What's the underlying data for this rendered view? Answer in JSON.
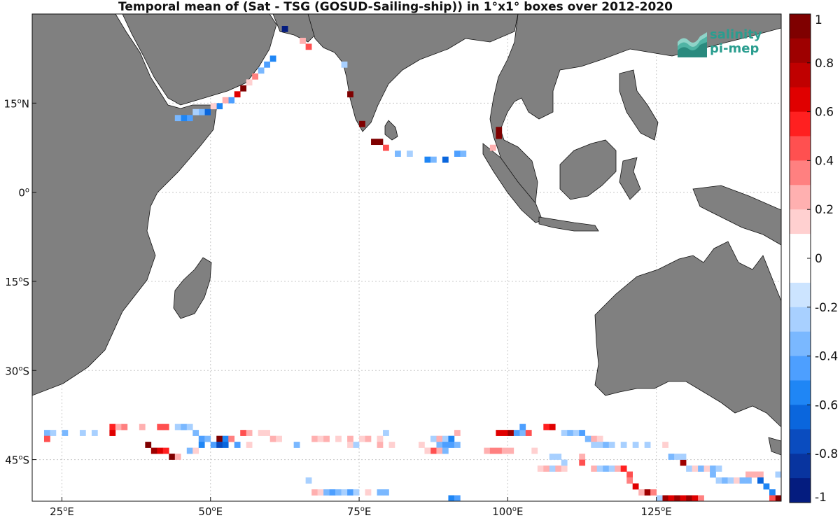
{
  "title": "Temporal mean of (Sat - TSG (GOSUD-Sailing-ship)) in 1°x1° boxes over 2012-2020",
  "logo": {
    "line1": "salinity",
    "line2": "pi-mep"
  },
  "colors": {
    "land": "#808080",
    "ocean": "#ffffff",
    "grid": "#c8c8c8"
  },
  "map": {
    "lon_range": [
      20,
      146
    ],
    "lat_range": [
      -52,
      30
    ],
    "lon_ticks": [
      {
        "value": 25,
        "label": "25",
        "unit": "E"
      },
      {
        "value": 50,
        "label": "50",
        "unit": "E"
      },
      {
        "value": 75,
        "label": "75",
        "unit": "E"
      },
      {
        "value": 100,
        "label": "100",
        "unit": "E"
      },
      {
        "value": 125,
        "label": "125",
        "unit": "E"
      }
    ],
    "lat_ticks": [
      {
        "value": 15,
        "label": "15",
        "unit": "N"
      },
      {
        "value": 0,
        "label": "0",
        "unit": ""
      },
      {
        "value": -15,
        "label": "15",
        "unit": "S"
      },
      {
        "value": -30,
        "label": "30",
        "unit": "S"
      },
      {
        "value": -45,
        "label": "45",
        "unit": "S"
      }
    ]
  },
  "colorbar": {
    "range": [
      -1,
      1
    ],
    "labels": [
      "1",
      "0.8",
      "0.6",
      "0.4",
      "0.2",
      "0",
      "-0.2",
      "-0.4",
      "-0.6",
      "-0.8",
      "-1"
    ],
    "colors": [
      "#7f0000",
      "#9e0000",
      "#c00000",
      "#e00000",
      "#ff2020",
      "#ff5050",
      "#ff8080",
      "#ffb0b0",
      "#ffd0d0",
      "#ffffff",
      "#ffffff",
      "#cce4ff",
      "#a8d0ff",
      "#7ab8ff",
      "#4d9fff",
      "#1f86f5",
      "#0a66dd",
      "#0a4cbf",
      "#08349f",
      "#041c7f"
    ]
  },
  "grid_cells": [
    {
      "lon": 62.5,
      "lat": 27.5,
      "v": -0.9
    },
    {
      "lon": 65.5,
      "lat": 25.5,
      "v": 0.3
    },
    {
      "lon": 66.5,
      "lat": 24.5,
      "v": 0.5
    },
    {
      "lon": 60.5,
      "lat": 22.5,
      "v": -0.5
    },
    {
      "lon": 59.5,
      "lat": 21.5,
      "v": -0.4
    },
    {
      "lon": 58.5,
      "lat": 20.5,
      "v": -0.3
    },
    {
      "lon": 57.5,
      "lat": 19.5,
      "v": 0.4
    },
    {
      "lon": 56.5,
      "lat": 18.5,
      "v": 0.2
    },
    {
      "lon": 55.5,
      "lat": 17.5,
      "v": 0.9
    },
    {
      "lon": 54.5,
      "lat": 16.5,
      "v": 0.7
    },
    {
      "lon": 53.5,
      "lat": 15.5,
      "v": -0.4
    },
    {
      "lon": 52.5,
      "lat": 15.5,
      "v": 0.3
    },
    {
      "lon": 51.5,
      "lat": 14.5,
      "v": -0.5
    },
    {
      "lon": 50.5,
      "lat": 14.5,
      "v": 0.2
    },
    {
      "lon": 49.5,
      "lat": 13.5,
      "v": -0.6
    },
    {
      "lon": 48.5,
      "lat": 13.5,
      "v": -0.3
    },
    {
      "lon": 47.5,
      "lat": 13.5,
      "v": -0.2
    },
    {
      "lon": 46.5,
      "lat": 12.5,
      "v": -0.4
    },
    {
      "lon": 45.5,
      "lat": 12.5,
      "v": -0.5
    },
    {
      "lon": 44.5,
      "lat": 12.5,
      "v": -0.3
    },
    {
      "lon": 72.5,
      "lat": 21.5,
      "v": -0.2
    },
    {
      "lon": 73.5,
      "lat": 16.5,
      "v": 0.9
    },
    {
      "lon": 75.5,
      "lat": 11.5,
      "v": 0.9
    },
    {
      "lon": 77.5,
      "lat": 8.5,
      "v": 1.0
    },
    {
      "lon": 78.5,
      "lat": 8.5,
      "v": 0.9
    },
    {
      "lon": 79.5,
      "lat": 7.5,
      "v": 0.5
    },
    {
      "lon": 81.5,
      "lat": 6.5,
      "v": -0.3
    },
    {
      "lon": 83.5,
      "lat": 6.5,
      "v": -0.2
    },
    {
      "lon": 86.5,
      "lat": 5.5,
      "v": -0.5
    },
    {
      "lon": 87.5,
      "lat": 5.5,
      "v": -0.3
    },
    {
      "lon": 89.5,
      "lat": 5.5,
      "v": -0.6
    },
    {
      "lon": 91.5,
      "lat": 6.5,
      "v": -0.4
    },
    {
      "lon": 92.5,
      "lat": 6.5,
      "v": -0.3
    },
    {
      "lon": 97.5,
      "lat": 7.5,
      "v": 0.3
    },
    {
      "lon": 98.5,
      "lat": 9.5,
      "v": 1.0
    },
    {
      "lon": 98.5,
      "lat": 10.5,
      "v": 0.9
    },
    {
      "lon": 22.5,
      "lat": -40.5,
      "v": -0.3
    },
    {
      "lon": 23.5,
      "lat": -40.5,
      "v": -0.2
    },
    {
      "lon": 25.5,
      "lat": -40.5,
      "v": -0.3
    },
    {
      "lon": 28.5,
      "lat": -40.5,
      "v": -0.2
    },
    {
      "lon": 30.5,
      "lat": -40.5,
      "v": -0.2
    },
    {
      "lon": 22.5,
      "lat": -41.5,
      "v": 0.5
    },
    {
      "lon": 33.5,
      "lat": -39.5,
      "v": 0.6
    },
    {
      "lon": 34.5,
      "lat": -39.5,
      "v": 0.3
    },
    {
      "lon": 35.5,
      "lat": -39.5,
      "v": 0.4
    },
    {
      "lon": 33.5,
      "lat": -40.5,
      "v": 0.7
    },
    {
      "lon": 38.5,
      "lat": -39.5,
      "v": 0.3
    },
    {
      "lon": 41.5,
      "lat": -39.5,
      "v": 0.5
    },
    {
      "lon": 42.5,
      "lat": -39.5,
      "v": 0.5
    },
    {
      "lon": 44.5,
      "lat": -39.5,
      "v": -0.2
    },
    {
      "lon": 45.5,
      "lat": -39.5,
      "v": -0.3
    },
    {
      "lon": 46.5,
      "lat": -39.5,
      "v": -0.2
    },
    {
      "lon": 47.5,
      "lat": -40.5,
      "v": -0.3
    },
    {
      "lon": 48.5,
      "lat": -41.5,
      "v": -0.4
    },
    {
      "lon": 49.5,
      "lat": -41.5,
      "v": -0.3
    },
    {
      "lon": 51.5,
      "lat": -41.5,
      "v": 0.9
    },
    {
      "lon": 52.5,
      "lat": -41.5,
      "v": -0.5
    },
    {
      "lon": 53.5,
      "lat": -41.5,
      "v": 0.4
    },
    {
      "lon": 55.5,
      "lat": -40.5,
      "v": 0.5
    },
    {
      "lon": 56.5,
      "lat": -40.5,
      "v": 0.3
    },
    {
      "lon": 58.5,
      "lat": -40.5,
      "v": 0.2
    },
    {
      "lon": 59.5,
      "lat": -40.5,
      "v": 0.2
    },
    {
      "lon": 60.5,
      "lat": -41.5,
      "v": 0.3
    },
    {
      "lon": 61.5,
      "lat": -41.5,
      "v": 0.2
    },
    {
      "lon": 39.5,
      "lat": -42.5,
      "v": 1.0
    },
    {
      "lon": 40.5,
      "lat": -43.5,
      "v": 0.8
    },
    {
      "lon": 41.5,
      "lat": -43.5,
      "v": 0.7
    },
    {
      "lon": 42.5,
      "lat": -43.5,
      "v": 0.6
    },
    {
      "lon": 43.5,
      "lat": -44.5,
      "v": 0.9
    },
    {
      "lon": 44.5,
      "lat": -44.5,
      "v": 0.3
    },
    {
      "lon": 46.5,
      "lat": -43.5,
      "v": -0.3
    },
    {
      "lon": 47.5,
      "lat": -43.5,
      "v": 0.2
    },
    {
      "lon": 48.5,
      "lat": -42.5,
      "v": -0.5
    },
    {
      "lon": 50.5,
      "lat": -42.5,
      "v": -0.4
    },
    {
      "lon": 51.5,
      "lat": -42.5,
      "v": -0.7
    },
    {
      "lon": 52.5,
      "lat": -42.5,
      "v": -0.6
    },
    {
      "lon": 54.5,
      "lat": -42.5,
      "v": -0.4
    },
    {
      "lon": 56.5,
      "lat": -42.5,
      "v": 0.2
    },
    {
      "lon": 64.5,
      "lat": -42.5,
      "v": -0.3
    },
    {
      "lon": 67.5,
      "lat": -41.5,
      "v": 0.3
    },
    {
      "lon": 68.5,
      "lat": -41.5,
      "v": 0.2
    },
    {
      "lon": 69.5,
      "lat": -41.5,
      "v": 0.3
    },
    {
      "lon": 71.5,
      "lat": -41.5,
      "v": 0.2
    },
    {
      "lon": 73.5,
      "lat": -41.5,
      "v": 0.3
    },
    {
      "lon": 75.5,
      "lat": -41.5,
      "v": 0.2
    },
    {
      "lon": 76.5,
      "lat": -41.5,
      "v": 0.3
    },
    {
      "lon": 78.5,
      "lat": -41.5,
      "v": 0.2
    },
    {
      "lon": 79.5,
      "lat": -40.5,
      "v": -0.2
    },
    {
      "lon": 73.5,
      "lat": -42.5,
      "v": 0.2
    },
    {
      "lon": 74.5,
      "lat": -42.5,
      "v": -0.2
    },
    {
      "lon": 78.5,
      "lat": -42.5,
      "v": 0.3
    },
    {
      "lon": 80.5,
      "lat": -42.5,
      "v": 0.2
    },
    {
      "lon": 87.5,
      "lat": -41.5,
      "v": -0.2
    },
    {
      "lon": 88.5,
      "lat": -41.5,
      "v": 0.3
    },
    {
      "lon": 89.5,
      "lat": -41.5,
      "v": -0.2
    },
    {
      "lon": 90.5,
      "lat": -41.5,
      "v": -0.5
    },
    {
      "lon": 91.5,
      "lat": -40.5,
      "v": 0.3
    },
    {
      "lon": 85.5,
      "lat": -42.5,
      "v": 0.2
    },
    {
      "lon": 86.5,
      "lat": -43.5,
      "v": 0.3
    },
    {
      "lon": 88.5,
      "lat": -42.5,
      "v": -0.3
    },
    {
      "lon": 89.5,
      "lat": -42.5,
      "v": -0.4
    },
    {
      "lon": 90.5,
      "lat": -42.5,
      "v": -0.4
    },
    {
      "lon": 91.5,
      "lat": -42.5,
      "v": -0.3
    },
    {
      "lon": 87.5,
      "lat": -43.5,
      "v": 0.5
    },
    {
      "lon": 88.5,
      "lat": -43.5,
      "v": 0.3
    },
    {
      "lon": 89.5,
      "lat": -43.5,
      "v": -0.3
    },
    {
      "lon": 96.5,
      "lat": -43.5,
      "v": 0.3
    },
    {
      "lon": 97.5,
      "lat": -43.5,
      "v": 0.4
    },
    {
      "lon": 98.5,
      "lat": -43.5,
      "v": 0.4
    },
    {
      "lon": 99.5,
      "lat": -43.5,
      "v": 0.3
    },
    {
      "lon": 100.5,
      "lat": -43.5,
      "v": 0.3
    },
    {
      "lon": 104.5,
      "lat": -43.5,
      "v": 0.2
    },
    {
      "lon": 98.5,
      "lat": -40.5,
      "v": 0.7
    },
    {
      "lon": 99.5,
      "lat": -40.5,
      "v": 0.7
    },
    {
      "lon": 100.5,
      "lat": -40.5,
      "v": 0.8
    },
    {
      "lon": 101.5,
      "lat": -40.5,
      "v": -0.4
    },
    {
      "lon": 102.5,
      "lat": -40.5,
      "v": -0.3
    },
    {
      "lon": 103.5,
      "lat": -40.5,
      "v": 0.5
    },
    {
      "lon": 102.5,
      "lat": -39.5,
      "v": -0.4
    },
    {
      "lon": 106.5,
      "lat": -39.5,
      "v": 0.6
    },
    {
      "lon": 107.5,
      "lat": -39.5,
      "v": 0.7
    },
    {
      "lon": 109.5,
      "lat": -40.5,
      "v": -0.2
    },
    {
      "lon": 110.5,
      "lat": -40.5,
      "v": -0.3
    },
    {
      "lon": 111.5,
      "lat": -40.5,
      "v": -0.2
    },
    {
      "lon": 112.5,
      "lat": -40.5,
      "v": -0.4
    },
    {
      "lon": 113.5,
      "lat": -41.5,
      "v": -0.3
    },
    {
      "lon": 114.5,
      "lat": -41.5,
      "v": 0.3
    },
    {
      "lon": 115.5,
      "lat": -41.5,
      "v": 0.2
    },
    {
      "lon": 114.5,
      "lat": -42.5,
      "v": -0.2
    },
    {
      "lon": 115.5,
      "lat": -42.5,
      "v": -0.2
    },
    {
      "lon": 116.5,
      "lat": -42.5,
      "v": -0.3
    },
    {
      "lon": 117.5,
      "lat": -42.5,
      "v": -0.2
    },
    {
      "lon": 119.5,
      "lat": -42.5,
      "v": -0.2
    },
    {
      "lon": 121.5,
      "lat": -42.5,
      "v": -0.2
    },
    {
      "lon": 123.5,
      "lat": -42.5,
      "v": -0.2
    },
    {
      "lon": 126.5,
      "lat": -42.5,
      "v": 0.2
    },
    {
      "lon": 107.5,
      "lat": -44.5,
      "v": -0.2
    },
    {
      "lon": 108.5,
      "lat": -44.5,
      "v": -0.2
    },
    {
      "lon": 105.5,
      "lat": -46.5,
      "v": 0.2
    },
    {
      "lon": 106.5,
      "lat": -46.5,
      "v": 0.3
    },
    {
      "lon": 107.5,
      "lat": -46.5,
      "v": -0.2
    },
    {
      "lon": 108.5,
      "lat": -46.5,
      "v": 0.3
    },
    {
      "lon": 109.5,
      "lat": -46.5,
      "v": 0.2
    },
    {
      "lon": 109.5,
      "lat": -45.5,
      "v": -0.2
    },
    {
      "lon": 112.5,
      "lat": -44.5,
      "v": 0.3
    },
    {
      "lon": 112.5,
      "lat": -45.5,
      "v": 0.5
    },
    {
      "lon": 114.5,
      "lat": -46.5,
      "v": 0.3
    },
    {
      "lon": 115.5,
      "lat": -46.5,
      "v": -0.2
    },
    {
      "lon": 116.5,
      "lat": -46.5,
      "v": -0.3
    },
    {
      "lon": 117.5,
      "lat": -46.5,
      "v": -0.2
    },
    {
      "lon": 118.5,
      "lat": -46.5,
      "v": 0.3
    },
    {
      "lon": 119.5,
      "lat": -46.5,
      "v": 0.6
    },
    {
      "lon": 120.5,
      "lat": -47.5,
      "v": 0.5
    },
    {
      "lon": 120.5,
      "lat": -48.5,
      "v": 0.4
    },
    {
      "lon": 121.5,
      "lat": -49.5,
      "v": 0.7
    },
    {
      "lon": 122.5,
      "lat": -50.5,
      "v": 0.3
    },
    {
      "lon": 123.5,
      "lat": -50.5,
      "v": 0.8
    },
    {
      "lon": 124.5,
      "lat": -50.5,
      "v": 0.4
    },
    {
      "lon": 126.5,
      "lat": -51.5,
      "v": 0.8
    },
    {
      "lon": 127.5,
      "lat": -51.5,
      "v": 0.7
    },
    {
      "lon": 128.5,
      "lat": -51.5,
      "v": 0.8
    },
    {
      "lon": 129.5,
      "lat": -51.5,
      "v": 0.7
    },
    {
      "lon": 130.5,
      "lat": -51.5,
      "v": 0.8
    },
    {
      "lon": 131.5,
      "lat": -51.5,
      "v": 0.7
    },
    {
      "lon": 132.5,
      "lat": -51.5,
      "v": 0.4
    },
    {
      "lon": 125.5,
      "lat": -51.5,
      "v": -0.2
    },
    {
      "lon": 129.5,
      "lat": -45.5,
      "v": 0.8
    },
    {
      "lon": 127.5,
      "lat": -44.5,
      "v": -0.3
    },
    {
      "lon": 128.5,
      "lat": -44.5,
      "v": -0.2
    },
    {
      "lon": 129.5,
      "lat": -44.5,
      "v": -0.2
    },
    {
      "lon": 130.5,
      "lat": -46.5,
      "v": -0.2
    },
    {
      "lon": 131.5,
      "lat": -46.5,
      "v": 0.2
    },
    {
      "lon": 132.5,
      "lat": -46.5,
      "v": -0.3
    },
    {
      "lon": 133.5,
      "lat": -46.5,
      "v": 0.2
    },
    {
      "lon": 134.5,
      "lat": -46.5,
      "v": -0.3
    },
    {
      "lon": 135.5,
      "lat": -46.5,
      "v": -0.2
    },
    {
      "lon": 134.5,
      "lat": -47.5,
      "v": -0.3
    },
    {
      "lon": 135.5,
      "lat": -48.5,
      "v": -0.2
    },
    {
      "lon": 136.5,
      "lat": -48.5,
      "v": -0.3
    },
    {
      "lon": 137.5,
      "lat": -48.5,
      "v": -0.2
    },
    {
      "lon": 138.5,
      "lat": -48.5,
      "v": 0.2
    },
    {
      "lon": 139.5,
      "lat": -48.5,
      "v": -0.3
    },
    {
      "lon": 140.5,
      "lat": -47.5,
      "v": 0.3
    },
    {
      "lon": 140.5,
      "lat": -48.5,
      "v": -0.3
    },
    {
      "lon": 141.5,
      "lat": -47.5,
      "v": 0.3
    },
    {
      "lon": 142.5,
      "lat": -47.5,
      "v": 0.3
    },
    {
      "lon": 142.5,
      "lat": -48.5,
      "v": -0.6
    },
    {
      "lon": 143.5,
      "lat": -49.5,
      "v": -0.5
    },
    {
      "lon": 144.5,
      "lat": -50.5,
      "v": -0.5
    },
    {
      "lon": 145.5,
      "lat": -51.5,
      "v": 0.9
    },
    {
      "lon": 144.5,
      "lat": -51.5,
      "v": 0.5
    },
    {
      "lon": 145.5,
      "lat": -47.5,
      "v": -0.2
    },
    {
      "lon": 66.5,
      "lat": -48.5,
      "v": -0.2
    },
    {
      "lon": 67.5,
      "lat": -50.5,
      "v": 0.3
    },
    {
      "lon": 68.5,
      "lat": -50.5,
      "v": 0.2
    },
    {
      "lon": 69.5,
      "lat": -50.5,
      "v": -0.3
    },
    {
      "lon": 70.5,
      "lat": -50.5,
      "v": -0.4
    },
    {
      "lon": 71.5,
      "lat": -50.5,
      "v": -0.3
    },
    {
      "lon": 72.5,
      "lat": -50.5,
      "v": -0.2
    },
    {
      "lon": 73.5,
      "lat": -50.5,
      "v": -0.4
    },
    {
      "lon": 74.5,
      "lat": -50.5,
      "v": -0.2
    },
    {
      "lon": 76.5,
      "lat": -50.5,
      "v": 0.2
    },
    {
      "lon": 78.5,
      "lat": -50.5,
      "v": -0.3
    },
    {
      "lon": 79.5,
      "lat": -50.5,
      "v": -0.3
    },
    {
      "lon": 90.5,
      "lat": -51.5,
      "v": -0.5
    },
    {
      "lon": 91.5,
      "lat": -51.5,
      "v": -0.4
    },
    {
      "lon": 86.5,
      "lat": -43.5,
      "v": 0.2
    }
  ]
}
